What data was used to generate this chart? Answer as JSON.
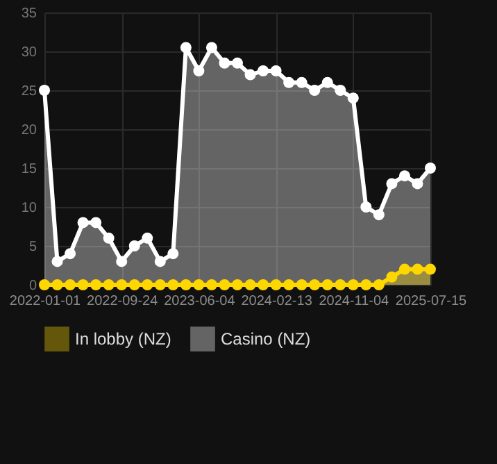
{
  "chart_data": {
    "type": "area",
    "categories": [
      "2022-01-01",
      null,
      null,
      null,
      null,
      null,
      "2022-09-24",
      null,
      null,
      null,
      null,
      null,
      "2023-06-04",
      null,
      null,
      null,
      null,
      null,
      "2024-02-13",
      null,
      null,
      null,
      null,
      null,
      "2024-11-04",
      null,
      null,
      null,
      null,
      null,
      "2025-07-15"
    ],
    "series": [
      {
        "name": "In lobby (NZ)",
        "color": "#ffd700",
        "values": [
          0,
          0,
          0,
          0,
          0,
          0,
          0,
          0,
          0,
          0,
          0,
          0,
          0,
          0,
          0,
          0,
          0,
          0,
          0,
          0,
          0,
          0,
          0,
          0,
          0,
          0,
          0,
          1,
          2,
          2,
          2
        ]
      },
      {
        "name": "Casino (NZ)",
        "color": "#ffffff",
        "values": [
          25,
          3,
          4,
          8,
          8,
          6,
          3,
          5,
          6,
          3,
          4,
          30.5,
          27.5,
          30.5,
          28.5,
          28.5,
          27,
          27.5,
          27.5,
          26,
          26,
          25,
          26,
          25,
          24,
          10,
          9,
          13,
          14,
          13,
          15
        ]
      }
    ],
    "ylim": [
      0,
      35
    ],
    "yticks": [
      0,
      5,
      10,
      15,
      20,
      25,
      30,
      35
    ],
    "grid": true,
    "legend": "bottom",
    "marker": "circle",
    "line_style": "solid"
  }
}
